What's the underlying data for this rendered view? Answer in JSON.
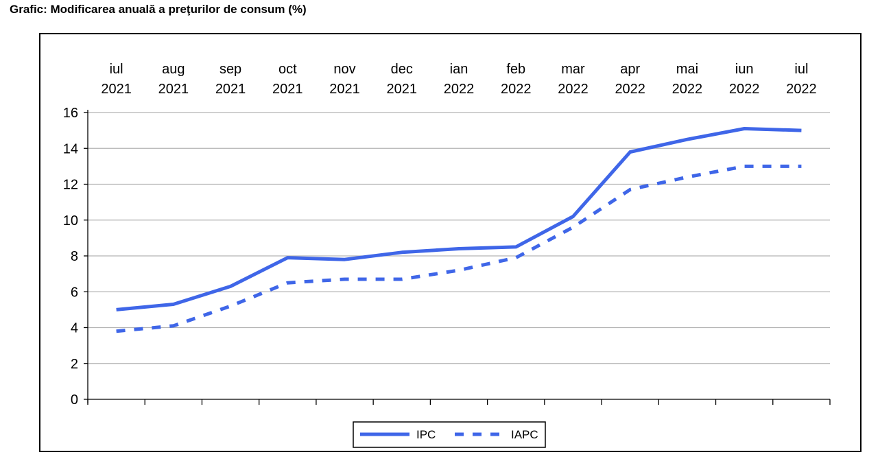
{
  "title": "Grafic: Modificarea anuală a preţurilor de consum (%)",
  "chart_data": {
    "type": "line",
    "title": "Grafic: Modificarea anuală a preţurilor de consum (%)",
    "xlabel": "",
    "ylabel": "",
    "categories": [
      [
        "iul",
        "2021"
      ],
      [
        "aug",
        "2021"
      ],
      [
        "sep",
        "2021"
      ],
      [
        "oct",
        "2021"
      ],
      [
        "nov",
        "2021"
      ],
      [
        "dec",
        "2021"
      ],
      [
        "ian",
        "2022"
      ],
      [
        "feb",
        "2022"
      ],
      [
        "mar",
        "2022"
      ],
      [
        "apr",
        "2022"
      ],
      [
        "mai",
        "2022"
      ],
      [
        "iun",
        "2022"
      ],
      [
        "iul",
        "2022"
      ]
    ],
    "ylim": [
      0,
      16
    ],
    "yticks": [
      0,
      2,
      4,
      6,
      8,
      10,
      12,
      14,
      16
    ],
    "grid": true,
    "legend": "bottom",
    "series": [
      {
        "name": "IPC",
        "style": "solid",
        "color": "#3F66E8",
        "values": [
          5.0,
          5.3,
          6.3,
          7.9,
          7.8,
          8.2,
          8.4,
          8.5,
          10.2,
          13.8,
          14.5,
          15.1,
          15.0
        ]
      },
      {
        "name": "IAPC",
        "style": "dotted",
        "color": "#3F66E8",
        "values": [
          3.8,
          4.1,
          5.2,
          6.5,
          6.7,
          6.7,
          7.2,
          7.9,
          9.6,
          11.7,
          12.4,
          13.0,
          13.0
        ]
      }
    ]
  }
}
